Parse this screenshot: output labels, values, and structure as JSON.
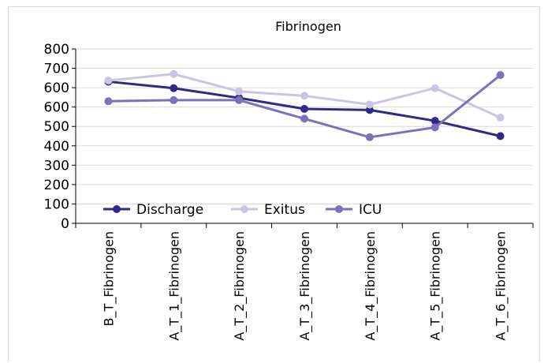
{
  "chart_data": {
    "type": "line",
    "title": "Fibrinogen",
    "xlabel": "",
    "ylabel": "",
    "categories": [
      "B_T_Fibrinogen",
      "A_T_1_Fibrinogen",
      "A_T_2_Fibrinogen",
      "A_T_3_Fibrinogen",
      "A_T_4_Fibrinogen",
      "A_T_5_Fibrinogen",
      "A_T_6_Fibrinogen"
    ],
    "y_ticks": [
      "0",
      "100",
      "200",
      "300",
      "400",
      "500",
      "600",
      "600",
      "700",
      "800"
    ],
    "ylim": [
      0,
      800
    ],
    "grid": true,
    "legend_position": "bottom-inside",
    "series": [
      {
        "name": "Discharge",
        "color": "#2e2a86",
        "values": [
          650,
          620,
          575,
          525,
          520,
          470,
          400
        ]
      },
      {
        "name": "Exitus",
        "color": "#c9c6e3",
        "values": [
          655,
          685,
          605,
          585,
          545,
          620,
          485
        ]
      },
      {
        "name": "ICU",
        "color": "#7a72bb",
        "values": [
          560,
          565,
          565,
          480,
          395,
          440,
          680
        ]
      }
    ]
  }
}
